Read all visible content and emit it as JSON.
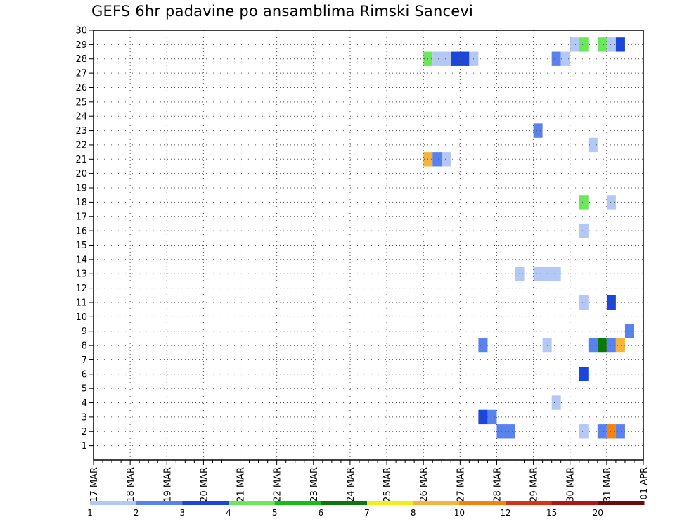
{
  "chart_data": {
    "type": "heatmap",
    "title": "GEFS 6hr padavine po ansamblima Rimski Sancevi",
    "xlabel": "",
    "ylabel": "",
    "x_start": "17 MAR",
    "x_step_hours": 6,
    "x_steps": 60,
    "x_tick_labels": [
      "17 MAR",
      "18 MAR",
      "19 MAR",
      "20 MAR",
      "21 MAR",
      "22 MAR",
      "23 MAR",
      "24 MAR",
      "25 MAR",
      "26 MAR",
      "27 MAR",
      "28 MAR",
      "29 MAR",
      "30 MAR",
      "31 MAR",
      "01 APR"
    ],
    "y_tick_labels": [
      "1",
      "2",
      "3",
      "4",
      "5",
      "6",
      "7",
      "8",
      "9",
      "10",
      "11",
      "12",
      "13",
      "14",
      "15",
      "16",
      "17",
      "18",
      "19",
      "20",
      "21",
      "22",
      "23",
      "24",
      "25",
      "26",
      "27",
      "28",
      "29",
      "30"
    ],
    "ylim": [
      0,
      30
    ],
    "grid": true,
    "legend": {
      "placement": "bottom",
      "labels": [
        "1",
        "2",
        "3",
        "4",
        "5",
        "6",
        "7",
        "8",
        "10",
        "12",
        "15",
        "20"
      ],
      "colors": [
        "#b4c8f5",
        "#5a82ee",
        "#1a46dc",
        "#6ae85a",
        "#14be14",
        "#0a780a",
        "#f0f014",
        "#f5b43c",
        "#f5820f",
        "#dc3214",
        "#b41414",
        "#6e0a0a"
      ]
    },
    "bins": [
      {
        "min": 1,
        "max": 2,
        "color": "#b4c8f5"
      },
      {
        "min": 2,
        "max": 3,
        "color": "#5a82ee"
      },
      {
        "min": 3,
        "max": 4,
        "color": "#1a46dc"
      },
      {
        "min": 4,
        "max": 5,
        "color": "#6ae85a"
      },
      {
        "min": 5,
        "max": 6,
        "color": "#14be14"
      },
      {
        "min": 6,
        "max": 7,
        "color": "#0a780a"
      },
      {
        "min": 8,
        "max": 10,
        "color": "#f5b43c"
      },
      {
        "min": 10,
        "max": 12,
        "color": "#f5820f"
      }
    ],
    "cells": [
      {
        "step": 52,
        "span": 1,
        "member": 29,
        "value": 1.5
      },
      {
        "step": 53,
        "span": 1,
        "member": 29,
        "value": 4.5
      },
      {
        "step": 55,
        "span": 1,
        "member": 29,
        "value": 4.5
      },
      {
        "step": 56,
        "span": 1,
        "member": 29,
        "value": 1.5
      },
      {
        "step": 57,
        "span": 1,
        "member": 29,
        "value": 3.5
      },
      {
        "step": 36,
        "span": 1,
        "member": 28,
        "value": 4.5
      },
      {
        "step": 37,
        "span": 2,
        "member": 28,
        "value": 1.5
      },
      {
        "step": 39,
        "span": 2,
        "member": 28,
        "value": 3.5
      },
      {
        "step": 41,
        "span": 1,
        "member": 28,
        "value": 1.5
      },
      {
        "step": 50,
        "span": 1,
        "member": 28,
        "value": 2.5
      },
      {
        "step": 51,
        "span": 1,
        "member": 28,
        "value": 1.5
      },
      {
        "step": 48,
        "span": 1,
        "member": 23,
        "value": 2.5
      },
      {
        "step": 54,
        "span": 1,
        "member": 22,
        "value": 1.5
      },
      {
        "step": 36,
        "span": 1,
        "member": 21,
        "value": 9
      },
      {
        "step": 37,
        "span": 1,
        "member": 21,
        "value": 2.5
      },
      {
        "step": 38,
        "span": 1,
        "member": 21,
        "value": 1.5
      },
      {
        "step": 53,
        "span": 1,
        "member": 18,
        "value": 4.5
      },
      {
        "step": 56,
        "span": 1,
        "member": 18,
        "value": 1.5
      },
      {
        "step": 53,
        "span": 1,
        "member": 16,
        "value": 1.5
      },
      {
        "step": 46,
        "span": 1,
        "member": 13,
        "value": 1.5
      },
      {
        "step": 48,
        "span": 3,
        "member": 13,
        "value": 1.5
      },
      {
        "step": 53,
        "span": 1,
        "member": 11,
        "value": 1.5
      },
      {
        "step": 56,
        "span": 1,
        "member": 11,
        "value": 3.5
      },
      {
        "step": 58,
        "span": 1,
        "member": 9,
        "value": 2.5
      },
      {
        "step": 42,
        "span": 1,
        "member": 8,
        "value": 2.5
      },
      {
        "step": 49,
        "span": 1,
        "member": 8,
        "value": 1.5
      },
      {
        "step": 54,
        "span": 1,
        "member": 8,
        "value": 2.5
      },
      {
        "step": 55,
        "span": 1,
        "member": 8,
        "value": 6.5
      },
      {
        "step": 56,
        "span": 1,
        "member": 8,
        "value": 2.5
      },
      {
        "step": 57,
        "span": 1,
        "member": 8,
        "value": 9
      },
      {
        "step": 53,
        "span": 1,
        "member": 6,
        "value": 3.5
      },
      {
        "step": 50,
        "span": 1,
        "member": 4,
        "value": 1.5
      },
      {
        "step": 42,
        "span": 1,
        "member": 3,
        "value": 3.5
      },
      {
        "step": 43,
        "span": 1,
        "member": 3,
        "value": 2.5
      },
      {
        "step": 44,
        "span": 2,
        "member": 2,
        "value": 2.5
      },
      {
        "step": 53,
        "span": 1,
        "member": 2,
        "value": 1.5
      },
      {
        "step": 55,
        "span": 1,
        "member": 2,
        "value": 2.5
      },
      {
        "step": 56,
        "span": 1,
        "member": 2,
        "value": 11
      },
      {
        "step": 57,
        "span": 1,
        "member": 2,
        "value": 2.5
      }
    ]
  }
}
